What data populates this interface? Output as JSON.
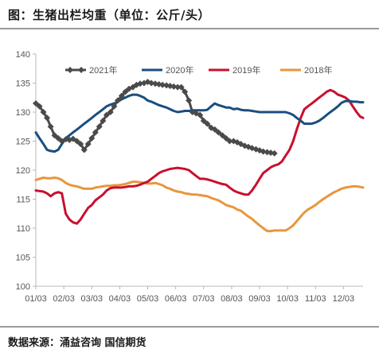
{
  "figure": {
    "title": "图：生猪出栏均重（单位：公斤/头）",
    "source": "数据来源：涌益咨询  国信期货"
  },
  "chart_data": {
    "type": "line",
    "title": "图：生猪出栏均重（单位：公斤/头）",
    "unit": "公斤/头",
    "xlabel": "",
    "ylabel": "",
    "x_ticks": [
      "01/03",
      "02/03",
      "03/03",
      "04/03",
      "05/03",
      "06/03",
      "07/03",
      "08/03",
      "09/03",
      "10/03",
      "11/03",
      "12/03"
    ],
    "xlim": [
      1,
      12.7
    ],
    "ylim": [
      100,
      140
    ],
    "y_ticks": [
      100,
      105,
      110,
      115,
      120,
      125,
      130,
      135,
      140
    ],
    "grid": false,
    "legend_position": "top",
    "series": [
      {
        "name": "2021年",
        "color": "#4a4a4a",
        "marker": "diamond",
        "x": [
          1.0,
          1.13,
          1.27,
          1.4,
          1.53,
          1.67,
          1.8,
          1.93,
          2.07,
          2.2,
          2.33,
          2.47,
          2.6,
          2.73,
          2.87,
          3.0,
          3.13,
          3.27,
          3.4,
          3.53,
          3.67,
          3.8,
          3.93,
          4.07,
          4.2,
          4.33,
          4.47,
          4.6,
          4.73,
          4.87,
          5.0,
          5.13,
          5.27,
          5.4,
          5.53,
          5.67,
          5.8,
          5.93,
          6.07,
          6.2,
          6.33,
          6.47,
          6.6,
          6.73,
          6.87,
          7.0,
          7.13,
          7.27,
          7.4,
          7.53,
          7.67,
          7.8,
          7.93,
          8.07,
          8.2,
          8.33,
          8.47,
          8.6,
          8.73,
          8.87,
          9.0,
          9.13,
          9.27,
          9.4,
          9.53
        ],
        "y": [
          131.5,
          131.0,
          130.0,
          129.0,
          127.5,
          126.0,
          125.5,
          125.0,
          125.3,
          125.2,
          125.4,
          125.0,
          124.5,
          123.5,
          124.5,
          125.5,
          126.5,
          127.5,
          128.5,
          129.5,
          130.0,
          131.0,
          132.0,
          132.8,
          133.5,
          134.0,
          134.3,
          134.7,
          134.9,
          135.0,
          135.2,
          135.0,
          134.9,
          134.8,
          134.7,
          134.6,
          134.5,
          134.4,
          134.3,
          134.3,
          133.5,
          132.0,
          130.0,
          129.8,
          129.5,
          128.5,
          128.0,
          127.3,
          127.0,
          126.5,
          126.0,
          125.5,
          125.0,
          125.0,
          124.8,
          124.5,
          124.2,
          124.0,
          123.8,
          123.6,
          123.4,
          123.2,
          123.1,
          123.0,
          122.9
        ]
      },
      {
        "name": "2020年",
        "color": "#1a4e7e",
        "x": [
          1.0,
          1.13,
          1.27,
          1.4,
          1.53,
          1.67,
          1.8,
          1.93,
          2.07,
          2.2,
          2.33,
          2.47,
          2.6,
          2.73,
          2.87,
          3.0,
          3.13,
          3.27,
          3.4,
          3.53,
          3.67,
          3.8,
          3.93,
          4.07,
          4.2,
          4.33,
          4.47,
          4.6,
          4.73,
          4.87,
          5.0,
          5.13,
          5.27,
          5.4,
          5.53,
          5.67,
          5.8,
          5.93,
          6.07,
          6.2,
          6.33,
          6.47,
          6.6,
          6.73,
          6.87,
          7.0,
          7.13,
          7.27,
          7.4,
          7.53,
          7.67,
          7.8,
          7.93,
          8.07,
          8.2,
          8.33,
          8.47,
          8.6,
          8.73,
          8.87,
          9.0,
          9.13,
          9.27,
          9.4,
          9.53,
          9.67,
          9.8,
          9.93,
          10.07,
          10.2,
          10.33,
          10.47,
          10.6,
          10.73,
          10.87,
          11.0,
          11.13,
          11.27,
          11.4,
          11.53,
          11.67,
          11.8,
          11.93,
          12.07,
          12.2,
          12.33,
          12.47,
          12.6,
          12.7
        ],
        "y": [
          126.5,
          125.5,
          124.5,
          123.5,
          123.3,
          123.2,
          123.5,
          124.5,
          125.5,
          126.0,
          126.5,
          127.0,
          127.5,
          128.0,
          128.5,
          129.0,
          129.5,
          130.0,
          130.5,
          131.0,
          131.3,
          131.5,
          131.8,
          132.2,
          132.5,
          132.8,
          133.0,
          133.0,
          132.8,
          132.5,
          132.0,
          131.8,
          131.5,
          131.2,
          131.0,
          130.8,
          130.5,
          130.2,
          130.0,
          130.1,
          130.2,
          130.2,
          130.3,
          130.3,
          130.3,
          130.3,
          130.4,
          131.0,
          131.5,
          131.2,
          131.0,
          130.8,
          130.8,
          130.5,
          130.6,
          130.4,
          130.3,
          130.3,
          130.2,
          130.1,
          130.0,
          130.0,
          130.0,
          130.0,
          130.0,
          130.0,
          130.0,
          130.0,
          129.8,
          129.5,
          129.0,
          128.5,
          128.0,
          128.0,
          128.0,
          128.2,
          128.5,
          129.0,
          129.5,
          130.0,
          130.5,
          131.0,
          131.6,
          131.9,
          131.9,
          131.8,
          131.8,
          131.7,
          131.7
        ]
      },
      {
        "name": "2019年",
        "color": "#c8102e",
        "x": [
          1.0,
          1.13,
          1.27,
          1.4,
          1.53,
          1.67,
          1.8,
          1.93,
          2.07,
          2.2,
          2.33,
          2.47,
          2.6,
          2.73,
          2.87,
          3.0,
          3.13,
          3.27,
          3.4,
          3.53,
          3.67,
          3.8,
          3.93,
          4.07,
          4.2,
          4.33,
          4.47,
          4.6,
          4.73,
          4.87,
          5.0,
          5.13,
          5.27,
          5.4,
          5.53,
          5.67,
          5.8,
          5.93,
          6.07,
          6.2,
          6.33,
          6.47,
          6.6,
          6.73,
          6.87,
          7.0,
          7.13,
          7.27,
          7.4,
          7.53,
          7.67,
          7.8,
          7.93,
          8.07,
          8.2,
          8.33,
          8.47,
          8.6,
          8.73,
          8.87,
          9.0,
          9.13,
          9.27,
          9.4,
          9.53,
          9.67,
          9.8,
          9.93,
          10.07,
          10.2,
          10.33,
          10.47,
          10.6,
          10.73,
          10.87,
          11.0,
          11.13,
          11.27,
          11.4,
          11.53,
          11.67,
          11.8,
          11.93,
          12.07,
          12.2,
          12.33,
          12.47,
          12.6,
          12.7
        ],
        "y": [
          116.5,
          116.4,
          116.3,
          116.0,
          115.5,
          116.0,
          116.2,
          116.0,
          112.5,
          111.5,
          111.0,
          110.8,
          111.5,
          112.5,
          113.5,
          114.0,
          114.8,
          115.3,
          115.8,
          116.5,
          116.9,
          117.0,
          117.0,
          117.0,
          117.1,
          117.2,
          117.2,
          117.3,
          117.5,
          117.8,
          118.0,
          118.5,
          119.0,
          119.5,
          119.8,
          120.0,
          120.2,
          120.3,
          120.4,
          120.3,
          120.2,
          120.0,
          119.5,
          119.0,
          118.5,
          118.5,
          118.4,
          118.2,
          118.0,
          117.8,
          117.6,
          117.5,
          117.0,
          116.5,
          116.2,
          116.0,
          115.8,
          115.8,
          116.5,
          117.5,
          118.5,
          119.5,
          120.0,
          120.5,
          120.8,
          121.0,
          121.5,
          122.5,
          123.5,
          125.0,
          127.0,
          129.0,
          130.5,
          131.0,
          131.5,
          132.0,
          132.5,
          133.0,
          133.5,
          133.8,
          133.5,
          133.0,
          132.8,
          132.5,
          132.0,
          131.0,
          130.0,
          129.2,
          129.0
        ]
      },
      {
        "name": "2018年",
        "color": "#e8963c",
        "x": [
          1.0,
          1.13,
          1.27,
          1.4,
          1.53,
          1.67,
          1.8,
          1.93,
          2.07,
          2.2,
          2.33,
          2.47,
          2.6,
          2.73,
          2.87,
          3.0,
          3.13,
          3.27,
          3.4,
          3.53,
          3.67,
          3.8,
          3.93,
          4.07,
          4.2,
          4.33,
          4.47,
          4.6,
          4.73,
          4.87,
          5.0,
          5.13,
          5.27,
          5.4,
          5.53,
          5.67,
          5.8,
          5.93,
          6.07,
          6.2,
          6.33,
          6.47,
          6.6,
          6.73,
          6.87,
          7.0,
          7.13,
          7.27,
          7.4,
          7.53,
          7.67,
          7.8,
          7.93,
          8.07,
          8.2,
          8.33,
          8.47,
          8.6,
          8.73,
          8.87,
          9.0,
          9.13,
          9.27,
          9.4,
          9.53,
          9.67,
          9.8,
          9.93,
          10.07,
          10.2,
          10.33,
          10.47,
          10.6,
          10.73,
          10.87,
          11.0,
          11.13,
          11.27,
          11.4,
          11.53,
          11.67,
          11.8,
          11.93,
          12.07,
          12.2,
          12.33,
          12.47,
          12.6,
          12.7
        ],
        "y": [
          118.3,
          118.5,
          118.7,
          118.6,
          118.6,
          118.7,
          118.6,
          118.3,
          117.8,
          117.5,
          117.3,
          117.2,
          117.0,
          116.8,
          116.8,
          116.8,
          117.0,
          117.1,
          117.2,
          117.3,
          117.3,
          117.4,
          117.4,
          117.5,
          117.6,
          117.8,
          118.0,
          118.0,
          117.9,
          117.8,
          117.7,
          117.7,
          117.8,
          117.6,
          117.4,
          117.0,
          116.8,
          116.5,
          116.3,
          116.2,
          116.0,
          115.9,
          115.8,
          115.8,
          115.7,
          115.6,
          115.5,
          115.2,
          115.0,
          114.8,
          114.4,
          114.0,
          113.8,
          113.6,
          113.2,
          113.0,
          112.5,
          112.0,
          111.6,
          111.0,
          110.5,
          110.0,
          109.5,
          109.5,
          109.6,
          109.6,
          109.6,
          109.6,
          110.0,
          110.5,
          111.2,
          112.0,
          112.7,
          113.2,
          113.6,
          114.0,
          114.5,
          115.0,
          115.4,
          115.8,
          116.2,
          116.5,
          116.8,
          117.0,
          117.1,
          117.2,
          117.2,
          117.1,
          117.0
        ]
      }
    ]
  }
}
